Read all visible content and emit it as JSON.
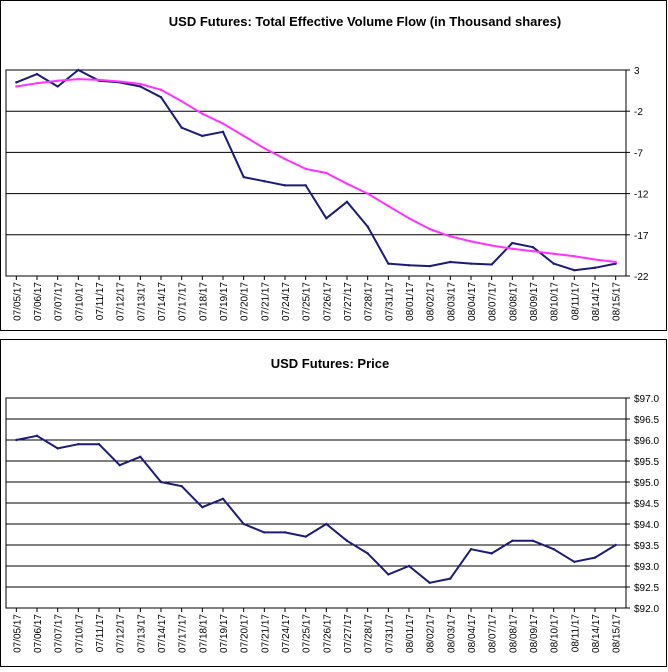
{
  "charts": [
    {
      "title": "USD Futures: Total Effective Volume Flow (in Thousand shares)",
      "type": "line",
      "y_ticks": [
        "3",
        "-2",
        "-7",
        "-12",
        "-17",
        "-22"
      ],
      "x_ticks": [
        "07/05/17",
        "07/06/17",
        "07/07/17",
        "07/10/17",
        "07/11/17",
        "07/12/17",
        "07/13/17",
        "07/14/17",
        "07/17/17",
        "07/18/17",
        "07/19/17",
        "07/20/17",
        "07/21/17",
        "07/24/17",
        "07/25/17",
        "07/26/17",
        "07/27/17",
        "07/28/17",
        "07/31/17",
        "08/01/17",
        "08/02/17",
        "08/03/17",
        "08/04/17",
        "08/07/17",
        "08/08/17",
        "08/09/17",
        "08/10/17",
        "08/11/17",
        "08/14/17",
        "08/15/17"
      ],
      "colors": {
        "main": "#1c1c78",
        "ma": "#ff33ff",
        "grid": "#000000"
      }
    },
    {
      "title": "USD Futures: Price",
      "type": "line",
      "y_ticks": [
        "$97.0",
        "$96.5",
        "$96.0",
        "$95.5",
        "$95.0",
        "$94.5",
        "$94.0",
        "$93.5",
        "$93.0",
        "$92.5",
        "$92.0"
      ],
      "x_ticks": [
        "07/05/17",
        "07/06/17",
        "07/07/17",
        "07/10/17",
        "07/11/17",
        "07/12/17",
        "07/13/17",
        "07/14/17",
        "07/17/17",
        "07/18/17",
        "07/19/17",
        "07/20/17",
        "07/21/17",
        "07/24/17",
        "07/25/17",
        "07/26/17",
        "07/27/17",
        "07/28/17",
        "07/31/17",
        "08/01/17",
        "08/02/17",
        "08/03/17",
        "08/04/17",
        "08/07/17",
        "08/08/17",
        "08/09/17",
        "08/10/17",
        "08/11/17",
        "08/14/17",
        "08/15/17"
      ],
      "colors": {
        "main": "#1c1c78",
        "grid": "#000000"
      }
    }
  ],
  "chart_data": [
    {
      "type": "line",
      "title": "USD Futures: Total Effective Volume Flow (in Thousand shares)",
      "xlabel": "",
      "ylabel": "",
      "ylim": [
        -22,
        3
      ],
      "grid": true,
      "legend": "none",
      "x": [
        "07/05/17",
        "07/06/17",
        "07/07/17",
        "07/10/17",
        "07/11/17",
        "07/12/17",
        "07/13/17",
        "07/14/17",
        "07/17/17",
        "07/18/17",
        "07/19/17",
        "07/20/17",
        "07/21/17",
        "07/24/17",
        "07/25/17",
        "07/26/17",
        "07/27/17",
        "07/28/17",
        "07/31/17",
        "08/01/17",
        "08/02/17",
        "08/03/17",
        "08/04/17",
        "08/07/17",
        "08/08/17",
        "08/09/17",
        "08/10/17",
        "08/11/17",
        "08/14/17",
        "08/15/17"
      ],
      "series": [
        {
          "values": [
            1.5,
            2.5,
            1.0,
            3.0,
            1.7,
            1.5,
            1.0,
            -0.3,
            -4.0,
            -5.0,
            -4.5,
            -10.0,
            -10.5,
            -11.0,
            -11.0,
            -15.0,
            -13.0,
            -16.0,
            -20.5,
            -20.7,
            -20.8,
            -20.3,
            -20.5,
            -20.6,
            -18.0,
            -18.5,
            -20.5,
            -21.3,
            -21.0,
            -20.5
          ],
          "color": "#1c1c78"
        },
        {
          "values": [
            1.0,
            1.4,
            1.7,
            1.9,
            1.8,
            1.6,
            1.3,
            0.6,
            -0.8,
            -2.3,
            -3.5,
            -5.0,
            -6.5,
            -7.8,
            -9.0,
            -9.5,
            -10.8,
            -12.0,
            -13.5,
            -15.0,
            -16.3,
            -17.2,
            -17.8,
            -18.3,
            -18.7,
            -19.0,
            -19.3,
            -19.6,
            -20.0,
            -20.3
          ],
          "color": "#ff33ff"
        }
      ]
    },
    {
      "type": "line",
      "title": "USD Futures: Price",
      "xlabel": "",
      "ylabel": "",
      "ylim": [
        92.0,
        97.0
      ],
      "grid": true,
      "legend": "none",
      "x": [
        "07/05/17",
        "07/06/17",
        "07/07/17",
        "07/10/17",
        "07/11/17",
        "07/12/17",
        "07/13/17",
        "07/14/17",
        "07/17/17",
        "07/18/17",
        "07/19/17",
        "07/20/17",
        "07/21/17",
        "07/24/17",
        "07/25/17",
        "07/26/17",
        "07/27/17",
        "07/28/17",
        "07/31/17",
        "08/01/17",
        "08/02/17",
        "08/03/17",
        "08/04/17",
        "08/07/17",
        "08/08/17",
        "08/09/17",
        "08/10/17",
        "08/11/17",
        "08/14/17",
        "08/15/17"
      ],
      "series": [
        {
          "values": [
            96.0,
            96.1,
            95.8,
            95.9,
            95.9,
            95.4,
            95.6,
            95.0,
            94.9,
            94.4,
            94.6,
            94.0,
            93.8,
            93.8,
            93.7,
            94.0,
            93.6,
            93.3,
            92.8,
            93.0,
            92.6,
            92.7,
            93.4,
            93.3,
            93.6,
            93.6,
            93.4,
            93.1,
            93.2,
            93.5
          ],
          "color": "#1c1c78"
        }
      ]
    }
  ]
}
